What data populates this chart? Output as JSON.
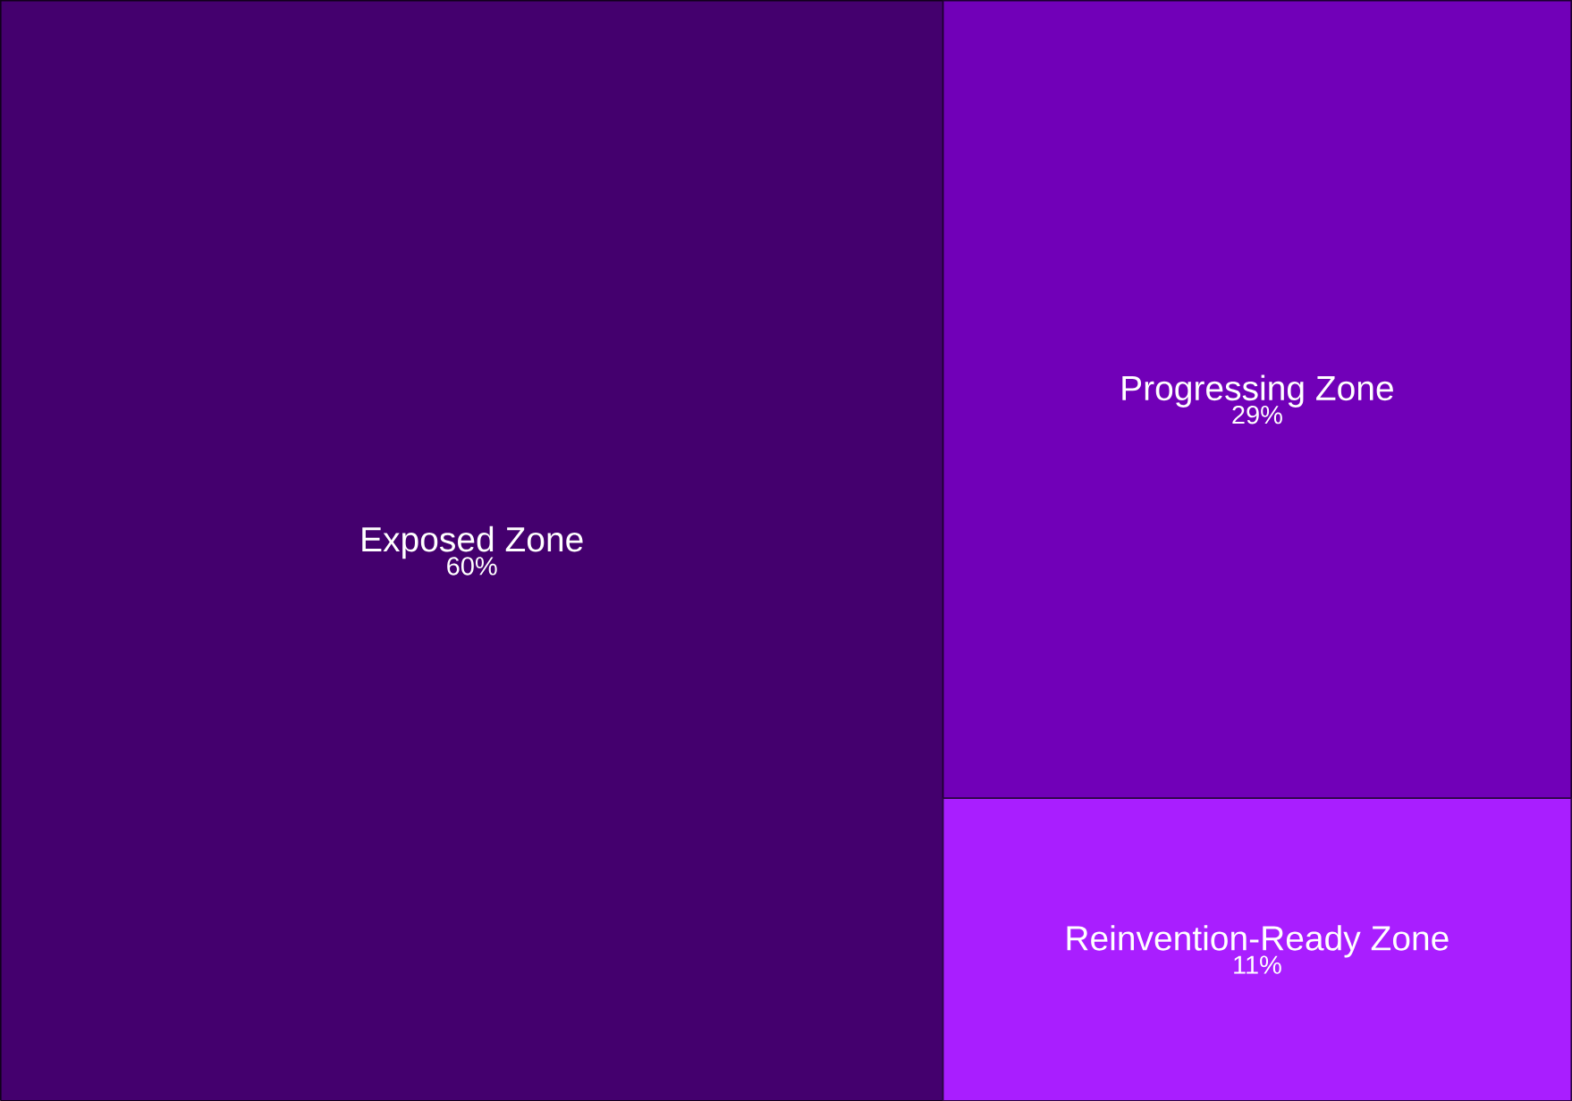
{
  "chart_data": {
    "type": "other",
    "categories": [
      "Exposed Zone",
      "Progressing Zone",
      "Reinvention-Ready Zone"
    ],
    "values": [
      60,
      29,
      11
    ],
    "value_labels": [
      "60%",
      "29%",
      "11%"
    ],
    "colors": [
      "#44006e",
      "#7100b8",
      "#a91eff"
    ]
  }
}
